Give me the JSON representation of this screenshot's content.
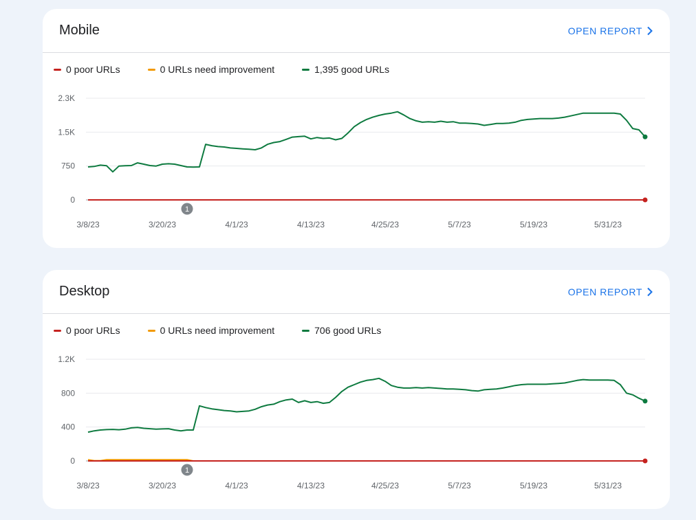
{
  "cards": [
    {
      "id": "mobile",
      "title": "Mobile",
      "open_report_label": "OPEN REPORT",
      "legend": [
        {
          "label": "0 poor URLs",
          "color": "#c5221f"
        },
        {
          "label": "0 URLs need improvement",
          "color": "#f29900"
        },
        {
          "label": "1,395 good URLs",
          "color": "#0d7a3f"
        }
      ],
      "chart_data": {
        "type": "line",
        "x_labels": [
          "3/8/23",
          "3/20/23",
          "4/1/23",
          "4/13/23",
          "4/25/23",
          "5/7/23",
          "5/19/23",
          "5/31/23"
        ],
        "y_ticks": [
          0,
          750,
          1500,
          2250
        ],
        "y_tick_labels": [
          "0",
          "750",
          "1.5K",
          "2.3K"
        ],
        "ylim": [
          0,
          2250
        ],
        "grid": true,
        "annotation": {
          "label": "1",
          "x_day": 16
        },
        "series": [
          {
            "name": "0 poor URLs",
            "color": "#c5221f",
            "values": [
              0,
              0,
              0,
              0,
              0,
              0,
              0,
              0,
              0,
              0,
              0,
              0,
              0,
              0,
              0,
              0,
              0,
              0,
              0,
              0,
              0,
              0,
              0,
              0,
              0,
              0,
              0,
              0,
              0,
              0,
              0,
              0,
              0,
              0,
              0,
              0,
              0,
              0,
              0,
              0,
              0,
              0,
              0,
              0,
              0,
              0,
              0,
              0,
              0,
              0,
              0,
              0,
              0,
              0,
              0,
              0,
              0,
              0,
              0,
              0,
              0,
              0,
              0,
              0,
              0,
              0,
              0,
              0,
              0,
              0,
              0,
              0,
              0,
              0,
              0,
              0,
              0,
              0,
              0,
              0,
              0,
              0,
              0,
              0,
              0,
              0,
              0,
              0,
              0,
              0,
              0
            ]
          },
          {
            "name": "0 URLs need improvement",
            "color": "#f29900",
            "values": [
              0,
              0,
              0,
              0,
              0,
              0,
              0,
              0,
              0,
              0,
              0,
              0,
              0,
              0,
              0,
              0,
              0,
              0,
              0,
              0,
              0,
              0,
              0,
              0,
              0,
              0,
              0,
              0,
              0,
              0,
              0,
              0,
              0,
              0,
              0,
              0,
              0,
              0,
              0,
              0,
              0,
              0,
              0,
              0,
              0,
              0,
              0,
              0,
              0,
              0,
              0,
              0,
              0,
              0,
              0,
              0,
              0,
              0,
              0,
              0,
              0,
              0,
              0,
              0,
              0,
              0,
              0,
              0,
              0,
              0,
              0,
              0,
              0,
              0,
              0,
              0,
              0,
              0,
              0,
              0,
              0,
              0,
              0,
              0,
              0,
              0,
              0,
              0,
              0,
              0,
              0
            ]
          },
          {
            "name": "1,395 good URLs",
            "color": "#0d7a3f",
            "values": [
              730,
              740,
              770,
              755,
              620,
              750,
              755,
              760,
              820,
              790,
              760,
              750,
              790,
              800,
              790,
              760,
              730,
              725,
              730,
              1230,
              1200,
              1180,
              1170,
              1150,
              1140,
              1130,
              1120,
              1110,
              1150,
              1230,
              1270,
              1290,
              1340,
              1390,
              1400,
              1410,
              1350,
              1380,
              1360,
              1370,
              1330,
              1360,
              1480,
              1620,
              1710,
              1780,
              1830,
              1870,
              1900,
              1920,
              1950,
              1880,
              1800,
              1750,
              1720,
              1730,
              1720,
              1740,
              1720,
              1730,
              1700,
              1700,
              1690,
              1680,
              1650,
              1670,
              1690,
              1690,
              1700,
              1720,
              1760,
              1780,
              1790,
              1800,
              1800,
              1800,
              1810,
              1830,
              1860,
              1890,
              1920,
              1920,
              1920,
              1920,
              1920,
              1920,
              1900,
              1760,
              1580,
              1550,
              1395
            ]
          }
        ]
      }
    },
    {
      "id": "desktop",
      "title": "Desktop",
      "open_report_label": "OPEN REPORT",
      "legend": [
        {
          "label": "0 poor URLs",
          "color": "#c5221f"
        },
        {
          "label": "0 URLs need improvement",
          "color": "#f29900"
        },
        {
          "label": "706 good URLs",
          "color": "#0d7a3f"
        }
      ],
      "chart_data": {
        "type": "line",
        "x_labels": [
          "3/8/23",
          "3/20/23",
          "4/1/23",
          "4/13/23",
          "4/25/23",
          "5/7/23",
          "5/19/23",
          "5/31/23"
        ],
        "y_ticks": [
          0,
          400,
          800,
          1200
        ],
        "y_tick_labels": [
          "0",
          "400",
          "800",
          "1.2K"
        ],
        "ylim": [
          0,
          1200
        ],
        "grid": true,
        "annotation": {
          "label": "1",
          "x_day": 16
        },
        "series": [
          {
            "name": "0 poor URLs",
            "color": "#c5221f",
            "values": [
              0,
              0,
              0,
              0,
              0,
              0,
              0,
              0,
              0,
              0,
              0,
              0,
              0,
              0,
              0,
              0,
              0,
              0,
              0,
              0,
              0,
              0,
              0,
              0,
              0,
              0,
              0,
              0,
              0,
              0,
              0,
              0,
              0,
              0,
              0,
              0,
              0,
              0,
              0,
              0,
              0,
              0,
              0,
              0,
              0,
              0,
              0,
              0,
              0,
              0,
              0,
              0,
              0,
              0,
              0,
              0,
              0,
              0,
              0,
              0,
              0,
              0,
              0,
              0,
              0,
              0,
              0,
              0,
              0,
              0,
              0,
              0,
              0,
              0,
              0,
              0,
              0,
              0,
              0,
              0,
              0,
              0,
              0,
              0,
              0,
              0,
              0,
              0,
              0,
              0,
              0
            ]
          },
          {
            "name": "0 URLs need improvement",
            "color": "#f29900",
            "values": [
              15,
              3,
              3,
              15,
              15,
              15,
              15,
              15,
              15,
              15,
              15,
              15,
              15,
              15,
              15,
              15,
              15,
              0,
              0,
              0,
              0,
              0,
              0,
              0,
              0,
              0,
              0,
              0,
              0,
              0,
              0,
              0,
              0,
              0,
              0,
              0,
              0,
              0,
              0,
              0,
              0,
              0,
              0,
              0,
              0,
              0,
              0,
              0,
              0,
              0,
              0,
              0,
              0,
              0,
              0,
              0,
              0,
              0,
              0,
              0,
              0,
              0,
              0,
              0,
              0,
              0,
              0,
              0,
              0,
              0,
              0,
              0,
              0,
              0,
              0,
              0,
              0,
              0,
              0,
              0,
              0,
              0,
              0,
              0,
              0,
              0,
              0,
              0,
              0,
              0,
              0
            ]
          },
          {
            "name": "706 good URLs",
            "color": "#0d7a3f",
            "values": [
              340,
              355,
              365,
              370,
              372,
              368,
              375,
              390,
              395,
              385,
              380,
              375,
              378,
              380,
              365,
              355,
              365,
              365,
              650,
              630,
              615,
              605,
              595,
              590,
              580,
              585,
              590,
              610,
              640,
              660,
              670,
              700,
              720,
              730,
              690,
              710,
              690,
              700,
              680,
              690,
              750,
              820,
              870,
              900,
              930,
              950,
              960,
              975,
              940,
              890,
              870,
              860,
              860,
              865,
              860,
              865,
              860,
              855,
              850,
              850,
              845,
              840,
              830,
              825,
              840,
              845,
              850,
              860,
              875,
              890,
              900,
              905,
              905,
              905,
              905,
              910,
              915,
              920,
              935,
              950,
              960,
              955,
              955,
              955,
              955,
              950,
              900,
              800,
              780,
              740,
              706
            ]
          }
        ]
      }
    }
  ]
}
